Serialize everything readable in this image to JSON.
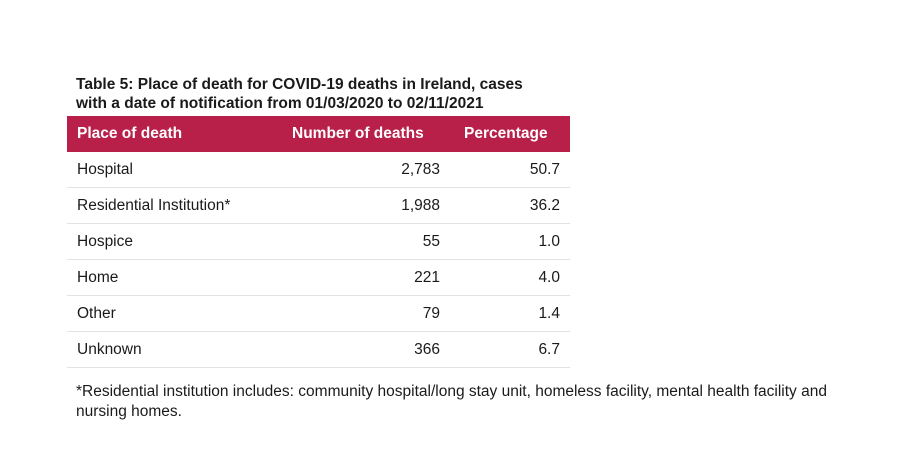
{
  "caption": {
    "line1": "Table 5: Place of death for COVID-19 deaths in Ireland, cases",
    "line2": "with a date of notification from 01/03/2020 to 02/11/2021"
  },
  "table": {
    "headers": [
      "Place of death",
      "Number of deaths",
      "Percentage"
    ],
    "rows": [
      [
        "Hospital",
        "2,783",
        "50.7"
      ],
      [
        "Residential Institution*",
        "1,988",
        "36.2"
      ],
      [
        "Hospice",
        "55",
        "1.0"
      ],
      [
        "Home",
        "221",
        "4.0"
      ],
      [
        "Other",
        "79",
        "1.4"
      ],
      [
        "Unknown",
        "366",
        "6.7"
      ]
    ]
  },
  "footnote": "*Residential institution includes: community hospital/long stay unit, homeless facility, mental health facility and nursing homes.",
  "colors": {
    "header_bg": "#b8204a",
    "header_text": "#ffffff",
    "row_divider": "#e2e2e2"
  }
}
